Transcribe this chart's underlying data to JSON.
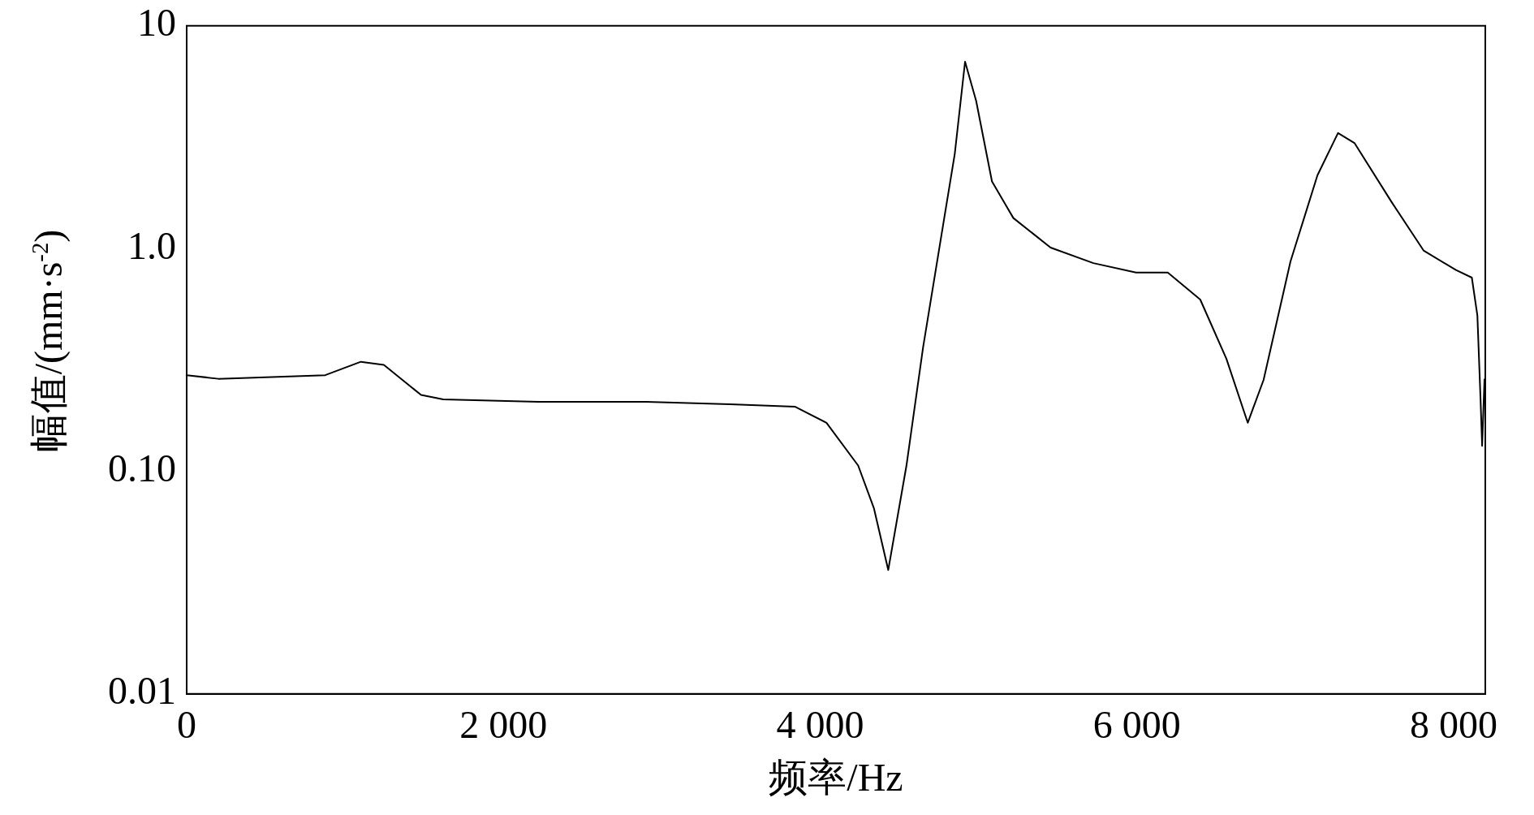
{
  "chart_data": {
    "type": "line",
    "xlabel": "频率/Hz",
    "ylabel": "幅值/(mm·s$^{-2}$)",
    "log": "y",
    "grid": false,
    "legend": false,
    "marker": "none",
    "line_style": "solid",
    "color": "#000000",
    "xlim": [
      0,
      8200
    ],
    "xticks": [
      0,
      {
        "value": 2000,
        "label": "2 000"
      },
      {
        "value": 4000,
        "label": "4 000"
      },
      {
        "value": 6000,
        "label": "6 000"
      },
      {
        "value": 8000,
        "label": "8 000"
      }
    ],
    "ylim": [
      0.01,
      10
    ],
    "yticks": [
      {
        "value": 0.01,
        "label": "0.01"
      },
      {
        "value": 0.1,
        "label": "0.10"
      },
      {
        "value": 1,
        "label": "1.0"
      },
      10
    ],
    "x": [
      0,
      200,
      875,
      1100,
      1245,
      1480,
      1620,
      2220,
      2900,
      3430,
      3840,
      4040,
      4240,
      4340,
      4430,
      4545,
      4650,
      4750,
      4850,
      4915,
      4985,
      5085,
      5220,
      5455,
      5725,
      5995,
      6195,
      6400,
      6565,
      6700,
      6800,
      6970,
      7140,
      7270,
      7375,
      7610,
      7810,
      8015,
      8115,
      8150,
      8170,
      8180,
      8195
    ],
    "values": [
      0.27,
      0.26,
      0.27,
      0.31,
      0.3,
      0.22,
      0.21,
      0.205,
      0.205,
      0.2,
      0.195,
      0.165,
      0.106,
      0.068,
      0.036,
      0.106,
      0.36,
      0.98,
      2.66,
      6.9,
      4.6,
      2.0,
      1.37,
      1.01,
      0.86,
      0.78,
      0.78,
      0.59,
      0.32,
      0.165,
      0.257,
      0.875,
      2.13,
      3.3,
      2.97,
      1.61,
      0.98,
      0.8,
      0.74,
      0.5,
      0.21,
      0.13,
      0.26
    ]
  }
}
